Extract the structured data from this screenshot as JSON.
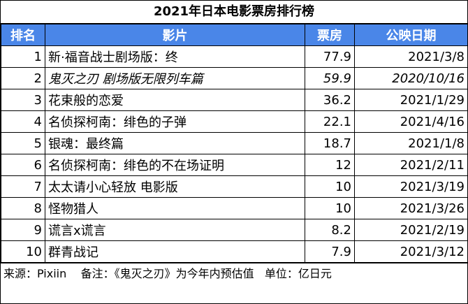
{
  "title": "2021年日本电影票房排行榜",
  "columns": [
    "排名",
    "影片",
    "票房",
    "公映日期"
  ],
  "rows": [
    {
      "rank": "1",
      "film": "新·福音战士剧场版：终",
      "box": "77.9",
      "date": "2021/3/8",
      "italic": false
    },
    {
      "rank": "2",
      "film": "鬼灭之刃 剧场版无限列车篇",
      "box": "59.9",
      "date": "2020/10/16",
      "italic": true
    },
    {
      "rank": "3",
      "film": "花束般的恋爱",
      "box": "36.2",
      "date": "2021/1/29",
      "italic": false
    },
    {
      "rank": "4",
      "film": "名侦探柯南：绯色的子弹",
      "box": "22.1",
      "date": "2021/4/16",
      "italic": false
    },
    {
      "rank": "5",
      "film": "银魂：最终篇",
      "box": "18.7",
      "date": "2021/1/8",
      "italic": false
    },
    {
      "rank": "6",
      "film": "名侦探柯南：绯色的不在场证明",
      "box": "12",
      "date": "2021/2/11",
      "italic": false
    },
    {
      "rank": "7",
      "film": "太太请小心轻放 电影版",
      "box": "10",
      "date": "2021/3/19",
      "italic": false
    },
    {
      "rank": "8",
      "film": "怪物猎人",
      "box": "10",
      "date": "2021/3/26",
      "italic": false
    },
    {
      "rank": "9",
      "film": "谎言x谎言",
      "box": "8.2",
      "date": "2021/2/19",
      "italic": false
    },
    {
      "rank": "10",
      "film": "群青战记",
      "box": "7.9",
      "date": "2021/3/12",
      "italic": false
    }
  ],
  "footer": {
    "source": "来源：Pixiin",
    "note": "备注：《鬼灭之刃》为今年内预估值",
    "unit": "单位：亿日元"
  },
  "colors": {
    "header_bg": "#4a86e8",
    "header_text": "#ffffff"
  }
}
